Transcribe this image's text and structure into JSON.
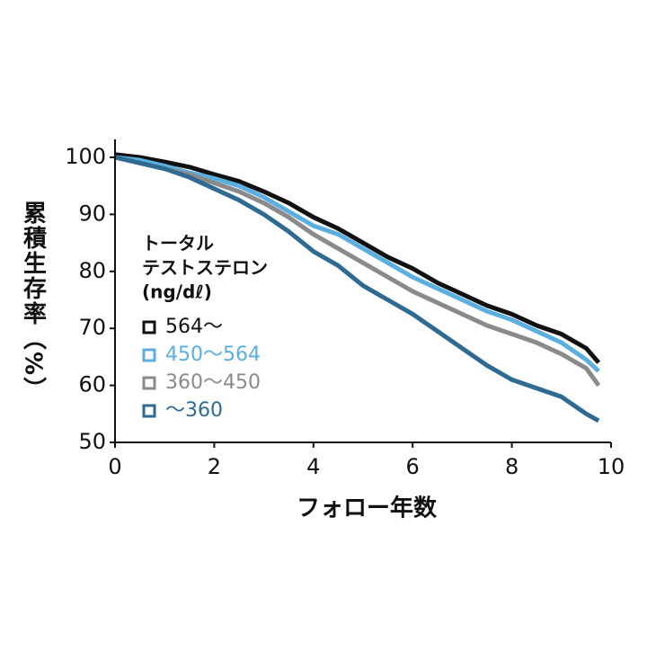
{
  "chart_data": {
    "type": "line",
    "y_label": "累積生存率（%）",
    "x_label": "フォロー年数",
    "legend_title": [
      "トータル",
      "テストステロン",
      "(ng/dℓ)"
    ],
    "x": [
      0,
      0.5,
      1,
      1.5,
      2,
      2.5,
      3,
      3.5,
      4,
      4.5,
      5,
      5.5,
      6,
      6.5,
      7,
      7.5,
      8,
      8.5,
      9,
      9.5,
      9.75
    ],
    "series": [
      {
        "name": "564〜",
        "color": "#111111",
        "values": [
          100.5,
          100,
          99.2,
          98.3,
          97,
          95.8,
          94,
          92,
          89.5,
          87.5,
          85,
          82.5,
          80.5,
          78,
          76,
          74,
          72.5,
          70.5,
          69,
          66.5,
          64
        ]
      },
      {
        "name": "450〜564",
        "color": "#5aaee0",
        "values": [
          100,
          99.5,
          98.5,
          97.3,
          96.3,
          95,
          93,
          90.5,
          88,
          86.5,
          84,
          81.5,
          79,
          77,
          75,
          73,
          71.5,
          69.5,
          67.5,
          64.5,
          62.5
        ]
      },
      {
        "name": "360〜450",
        "color": "#8a8a8a",
        "values": [
          100,
          99,
          98,
          97,
          95.5,
          94,
          92,
          89.5,
          86.5,
          84,
          81.5,
          79,
          76.5,
          74.5,
          72.5,
          70.5,
          69,
          67.5,
          65.5,
          63,
          60
        ]
      },
      {
        "name": "〜360",
        "color": "#2e6a92",
        "values": [
          100,
          99,
          98,
          96.5,
          94.5,
          92.5,
          90,
          87,
          83.5,
          81,
          77.5,
          75,
          72.5,
          69.5,
          66.5,
          63.5,
          61,
          59.5,
          58,
          55,
          53.8
        ]
      }
    ],
    "xlim": [
      0,
      10
    ],
    "xticks": [
      0,
      2,
      4,
      6,
      8,
      10
    ],
    "ylim": [
      50,
      100
    ],
    "yticks": [
      50,
      60,
      70,
      80,
      90,
      100
    ],
    "grid": false
  }
}
